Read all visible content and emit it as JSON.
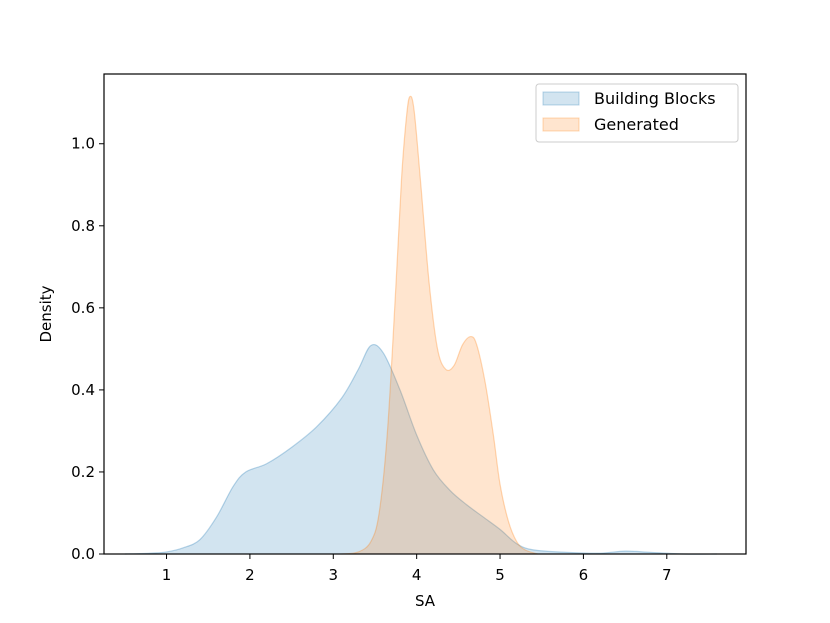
{
  "chart_data": {
    "type": "area",
    "xlabel": "SA",
    "ylabel": "Density",
    "xlim": [
      0.25,
      7.95
    ],
    "ylim": [
      0.0,
      1.17
    ],
    "x_ticks": [
      1,
      2,
      3,
      4,
      5,
      6,
      7
    ],
    "y_ticks": [
      0.0,
      0.2,
      0.4,
      0.6,
      0.8,
      1.0
    ],
    "legend_position": "top-right",
    "grid": false,
    "series": [
      {
        "name": "Building Blocks",
        "color": "#1f77b4",
        "points": [
          [
            0.5,
            0.0
          ],
          [
            0.8,
            0.002
          ],
          [
            1.0,
            0.005
          ],
          [
            1.2,
            0.015
          ],
          [
            1.4,
            0.035
          ],
          [
            1.6,
            0.09
          ],
          [
            1.8,
            0.165
          ],
          [
            1.95,
            0.2
          ],
          [
            2.2,
            0.22
          ],
          [
            2.5,
            0.26
          ],
          [
            2.8,
            0.31
          ],
          [
            3.1,
            0.38
          ],
          [
            3.3,
            0.45
          ],
          [
            3.45,
            0.508
          ],
          [
            3.6,
            0.49
          ],
          [
            3.8,
            0.4
          ],
          [
            4.0,
            0.29
          ],
          [
            4.2,
            0.205
          ],
          [
            4.4,
            0.155
          ],
          [
            4.6,
            0.12
          ],
          [
            4.8,
            0.09
          ],
          [
            5.0,
            0.06
          ],
          [
            5.2,
            0.025
          ],
          [
            5.4,
            0.01
          ],
          [
            5.8,
            0.004
          ],
          [
            6.2,
            0.002
          ],
          [
            6.5,
            0.007
          ],
          [
            6.8,
            0.004
          ],
          [
            7.2,
            0.0
          ],
          [
            7.6,
            0.0
          ]
        ]
      },
      {
        "name": "Generated",
        "color": "#ff7f0e",
        "points": [
          [
            3.1,
            0.0
          ],
          [
            3.3,
            0.005
          ],
          [
            3.45,
            0.03
          ],
          [
            3.55,
            0.1
          ],
          [
            3.65,
            0.3
          ],
          [
            3.75,
            0.65
          ],
          [
            3.82,
            0.92
          ],
          [
            3.88,
            1.07
          ],
          [
            3.92,
            1.115
          ],
          [
            3.97,
            1.08
          ],
          [
            4.05,
            0.9
          ],
          [
            4.15,
            0.66
          ],
          [
            4.25,
            0.5
          ],
          [
            4.35,
            0.45
          ],
          [
            4.45,
            0.46
          ],
          [
            4.55,
            0.51
          ],
          [
            4.65,
            0.53
          ],
          [
            4.72,
            0.51
          ],
          [
            4.82,
            0.42
          ],
          [
            4.92,
            0.29
          ],
          [
            5.0,
            0.17
          ],
          [
            5.1,
            0.08
          ],
          [
            5.2,
            0.03
          ],
          [
            5.3,
            0.01
          ],
          [
            5.45,
            0.0
          ]
        ]
      }
    ]
  }
}
